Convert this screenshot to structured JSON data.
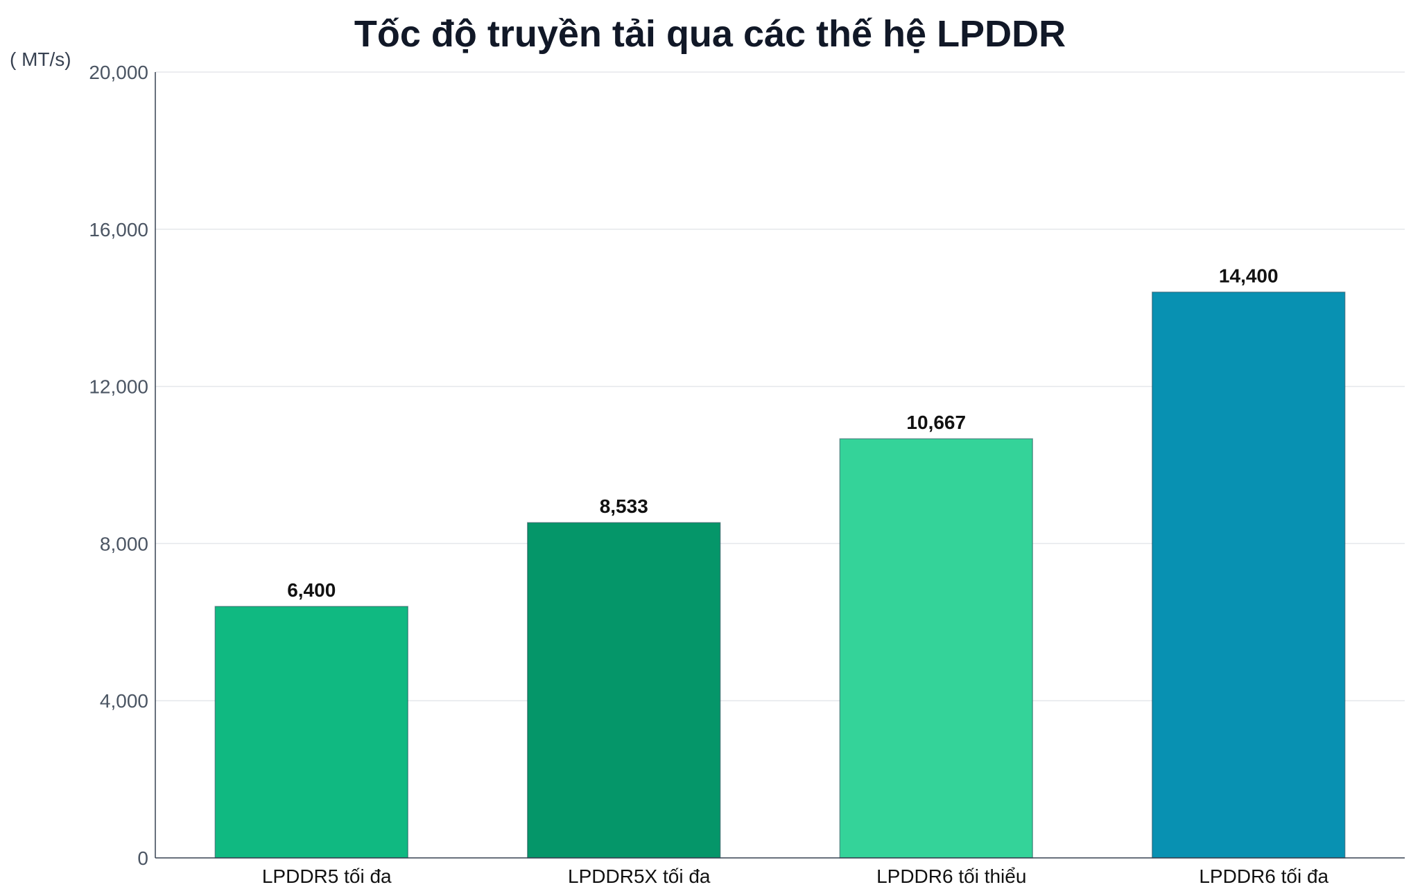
{
  "chart_data": {
    "type": "bar",
    "title": "Tốc độ truyền tải qua các thế hệ LPDDR",
    "ylabel": "( MT/s)",
    "xlabel": "",
    "categories": [
      "LPDDR5 tối đa",
      "LPDDR5X tối đa",
      "LPDDR6 tối thiểu",
      "LPDDR6 tối đa"
    ],
    "values": [
      6400,
      8533,
      10667,
      14400
    ],
    "value_labels": [
      "6,400",
      "8,533",
      "10,667",
      "14,400"
    ],
    "ylim": [
      0,
      20000
    ],
    "yticks": [
      0,
      4000,
      8000,
      12000,
      16000,
      20000
    ],
    "ytick_labels": [
      "0",
      "4,000",
      "8,000",
      "12,000",
      "16,000",
      "20,000"
    ],
    "bar_colors": [
      "#10b981",
      "#059669",
      "#34d399",
      "#0891b2"
    ],
    "grid": true,
    "legend": false
  }
}
